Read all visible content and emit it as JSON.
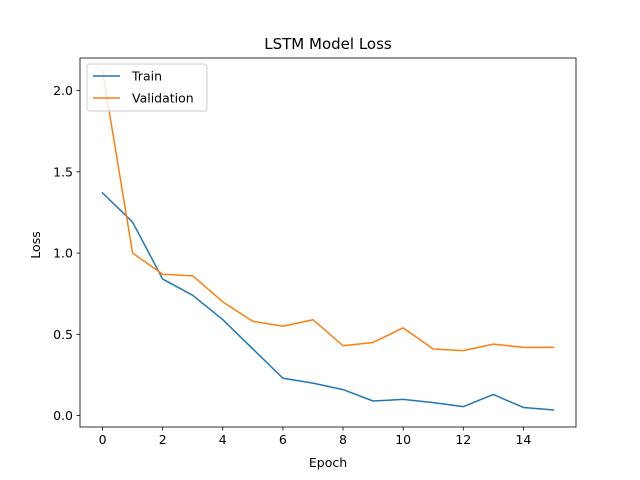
{
  "chart_data": {
    "type": "line",
    "title": "LSTM Model Loss",
    "xlabel": "Epoch",
    "ylabel": "Loss",
    "x": [
      0,
      1,
      2,
      3,
      4,
      5,
      6,
      7,
      8,
      9,
      10,
      11,
      12,
      13,
      14,
      15
    ],
    "xlim": [
      -0.75,
      15.75
    ],
    "ylim": [
      -0.07,
      2.2
    ],
    "xticks": [
      0,
      2,
      4,
      6,
      8,
      10,
      12,
      14
    ],
    "yticks": [
      0.0,
      0.5,
      1.0,
      1.5,
      2.0
    ],
    "xtick_labels": [
      "0",
      "2",
      "4",
      "6",
      "8",
      "10",
      "12",
      "14"
    ],
    "ytick_labels": [
      "0.0",
      "0.5",
      "1.0",
      "1.5",
      "2.0"
    ],
    "grid": false,
    "legend_position": "top-left",
    "series": [
      {
        "name": "Train",
        "color": "#1f77b4",
        "values": [
          1.37,
          1.19,
          0.84,
          0.74,
          0.59,
          0.41,
          0.23,
          0.2,
          0.16,
          0.09,
          0.1,
          0.08,
          0.055,
          0.13,
          0.05,
          0.035
        ]
      },
      {
        "name": "Validation",
        "color": "#ff7f0e",
        "values": [
          2.12,
          1.0,
          0.87,
          0.86,
          0.7,
          0.58,
          0.55,
          0.59,
          0.43,
          0.45,
          0.54,
          0.41,
          0.4,
          0.44,
          0.42,
          0.42
        ]
      }
    ]
  }
}
